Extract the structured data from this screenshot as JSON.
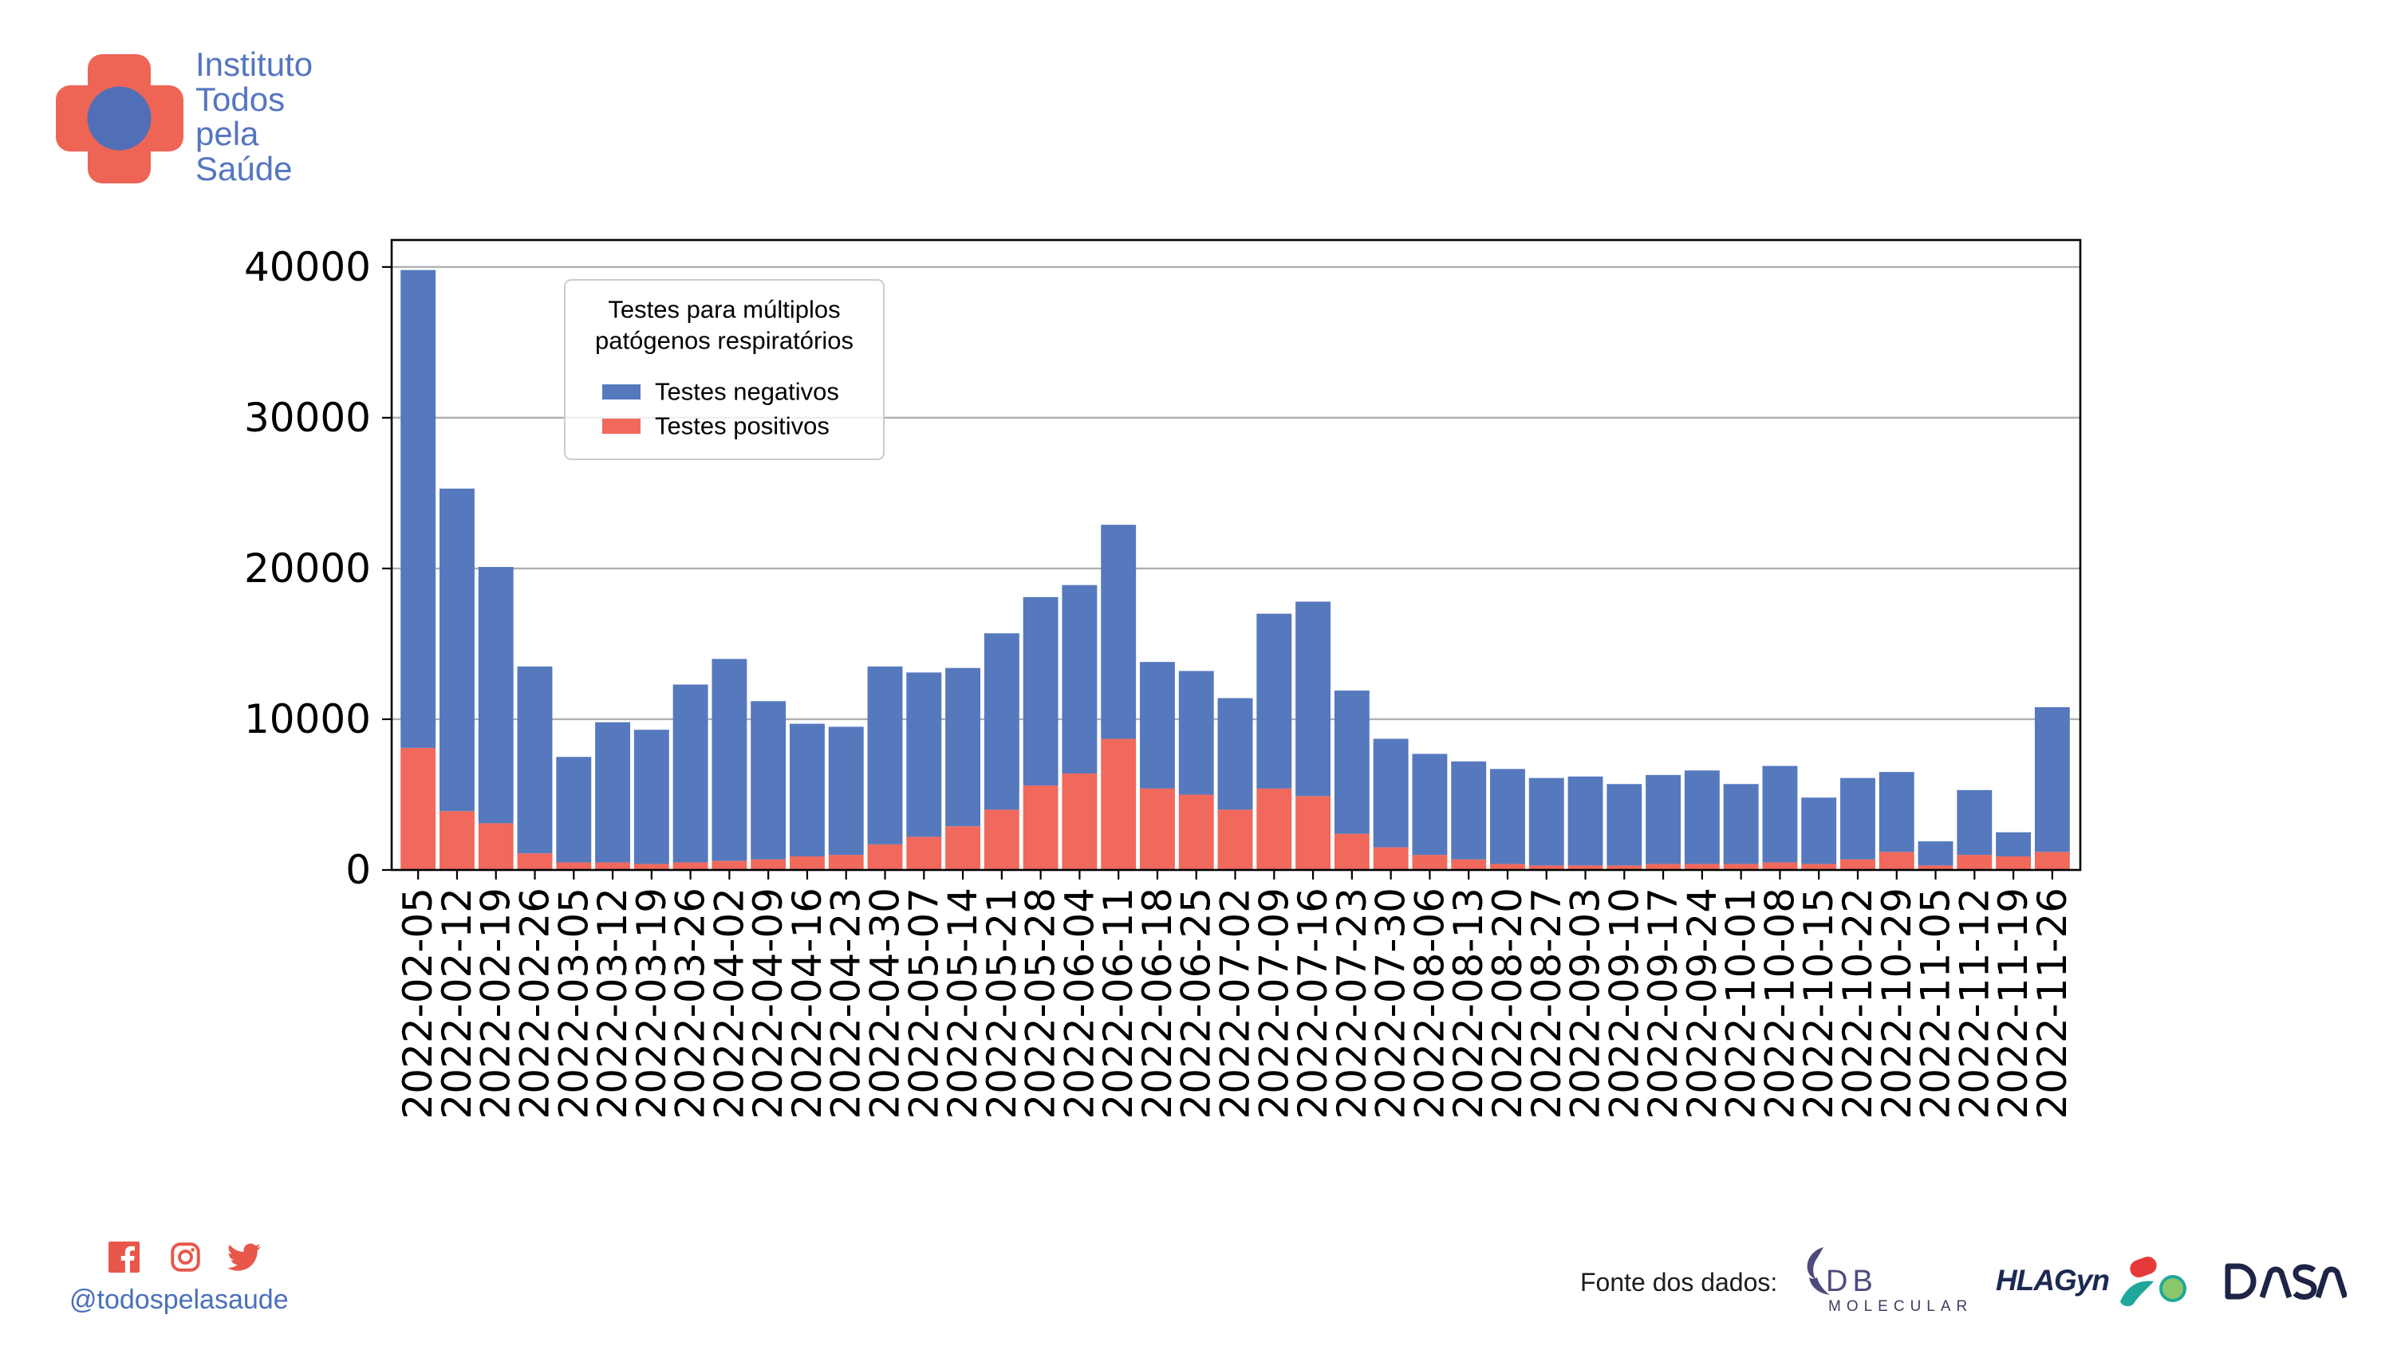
{
  "brand": {
    "name_lines": [
      "Instituto",
      "Todos",
      "pela",
      "Saúde"
    ],
    "logo_icon": "cross-logo-icon",
    "colors": {
      "red": "#EE6556",
      "blue": "#4A6FBA",
      "text": "#5575C0"
    }
  },
  "chart_data": {
    "type": "bar",
    "stacked": true,
    "categories": [
      "2022-02-05",
      "2022-02-12",
      "2022-02-19",
      "2022-02-26",
      "2022-03-05",
      "2022-03-12",
      "2022-03-19",
      "2022-03-26",
      "2022-04-02",
      "2022-04-09",
      "2022-04-16",
      "2022-04-23",
      "2022-04-30",
      "2022-05-07",
      "2022-05-14",
      "2022-05-21",
      "2022-05-28",
      "2022-06-04",
      "2022-06-11",
      "2022-06-18",
      "2022-06-25",
      "2022-07-02",
      "2022-07-09",
      "2022-07-16",
      "2022-07-23",
      "2022-07-30",
      "2022-08-06",
      "2022-08-13",
      "2022-08-20",
      "2022-08-27",
      "2022-09-03",
      "2022-09-10",
      "2022-09-17",
      "2022-09-24",
      "2022-10-01",
      "2022-10-08",
      "2022-10-15",
      "2022-10-22",
      "2022-10-29",
      "2022-11-05",
      "2022-11-12",
      "2022-11-19",
      "2022-11-26"
    ],
    "series": [
      {
        "name": "Testes negativos",
        "color": "#5679BE",
        "values": [
          31700,
          21400,
          17000,
          12400,
          7000,
          9300,
          8900,
          11800,
          13400,
          10500,
          8800,
          8500,
          11800,
          10900,
          10500,
          11700,
          12500,
          12500,
          14200,
          8400,
          8200,
          7400,
          11600,
          12900,
          9500,
          7200,
          6700,
          6500,
          6300,
          5800,
          5900,
          5400,
          5900,
          6200,
          5300,
          6400,
          4400,
          5400,
          5300,
          1600,
          4300,
          1600,
          9600
        ]
      },
      {
        "name": "Testes positivos",
        "color": "#F0695C",
        "values": [
          8100,
          3900,
          3100,
          1100,
          500,
          500,
          400,
          500,
          600,
          700,
          900,
          1000,
          1700,
          2200,
          2900,
          4000,
          5600,
          6400,
          8700,
          5400,
          5000,
          4000,
          5400,
          4900,
          2400,
          1500,
          1000,
          700,
          400,
          300,
          300,
          300,
          400,
          400,
          400,
          500,
          400,
          700,
          1200,
          300,
          1000,
          900,
          1200
        ]
      }
    ],
    "legend": {
      "title_lines": [
        "Testes para múltiplos",
        "patógenos respiratórios"
      ],
      "position": "upper-left"
    },
    "yticks": [
      0,
      10000,
      20000,
      30000,
      40000
    ],
    "ylim": [
      0,
      41790
    ],
    "grid": "y"
  },
  "footer": {
    "social": {
      "icons": [
        "facebook-icon",
        "instagram-icon",
        "twitter-icon"
      ],
      "icon_color": "#E8574A",
      "handle": "@todospelasaude"
    },
    "sources": {
      "label": "Fonte dos dados:",
      "logos": {
        "db_molecular": {
          "line1": "DB",
          "line2": "MOLECULAR"
        },
        "hlagyn": {
          "text": "HLAGyn"
        },
        "dasa": {
          "text": "dasa"
        }
      }
    }
  }
}
